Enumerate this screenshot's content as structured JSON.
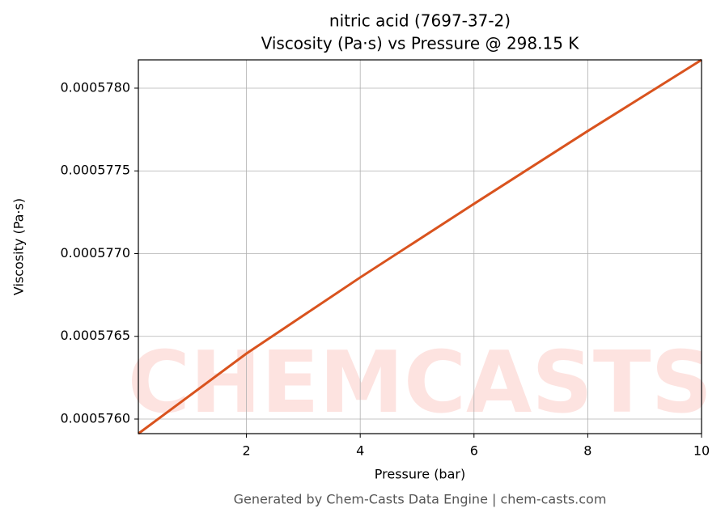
{
  "chart_data": {
    "type": "line",
    "title": "nitric acid (7697-37-2)",
    "subtitle": "Viscosity (Pa·s) vs Pressure @ 298.15 K",
    "x_label": "Pressure (bar)",
    "y_label": "Viscosity (Pa·s)",
    "watermark": "CHEMCASTS",
    "footer": "Generated by Chem-Casts Data Engine | chem-casts.com",
    "x": [
      0.1,
      2,
      4,
      6,
      8,
      10
    ],
    "series": [
      {
        "name": "Viscosity",
        "color": "#d9531e",
        "values": [
          0.000575912,
          0.000576396,
          0.000576856,
          0.000577301,
          0.000577741,
          0.000578171
        ]
      }
    ],
    "xlim": [
      0.1,
      10
    ],
    "ylim": [
      0.000575912,
      0.000578171
    ],
    "xticks": [
      2,
      4,
      6,
      8,
      10
    ],
    "yticks": [
      {
        "value": 0.000576,
        "label": "0.0005760"
      },
      {
        "value": 0.0005765,
        "label": "0.0005765"
      },
      {
        "value": 0.000577,
        "label": "0.0005770"
      },
      {
        "value": 0.0005775,
        "label": "0.0005775"
      },
      {
        "value": 0.000578,
        "label": "0.0005780"
      }
    ],
    "grid": true
  }
}
